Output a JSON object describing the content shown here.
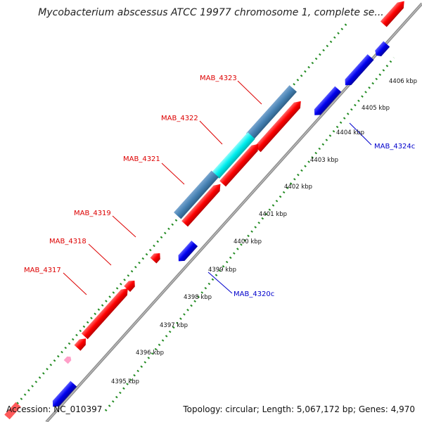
{
  "title": "Mycobacterium abscessus ATCC 19977 chromosome 1, complete se...",
  "footer": {
    "accession": "Accession: NC_010397",
    "topology": "Topology: circular; Length: 5,067,172 bp; Genes: 4,970"
  },
  "colors": {
    "forward_gene": "#ff0000",
    "reverse_gene": "#0000ee",
    "highlight_block": "#4682b4",
    "highlight_selected": "#00eeee",
    "axis": "#909090",
    "grid_dots": "#228b22",
    "forward_label": "#dd0000",
    "reverse_label": "#0000cc"
  },
  "scale_labels": [
    "4395 kbp",
    "4396 kbp",
    "4397 kbp",
    "4398 kbp",
    "4399 kbp",
    "4400 kbp",
    "4401 kbp",
    "4402 kbp",
    "4403 kbp",
    "4404 kbp",
    "4405 kbp",
    "4406 kbp"
  ],
  "gene_labels": {
    "forward": [
      "MAB_4317",
      "MAB_4318",
      "MAB_4319",
      "MAB_4321",
      "MAB_4322",
      "MAB_4323"
    ],
    "reverse": [
      "MAB_4320c",
      "MAB_4324c"
    ]
  }
}
